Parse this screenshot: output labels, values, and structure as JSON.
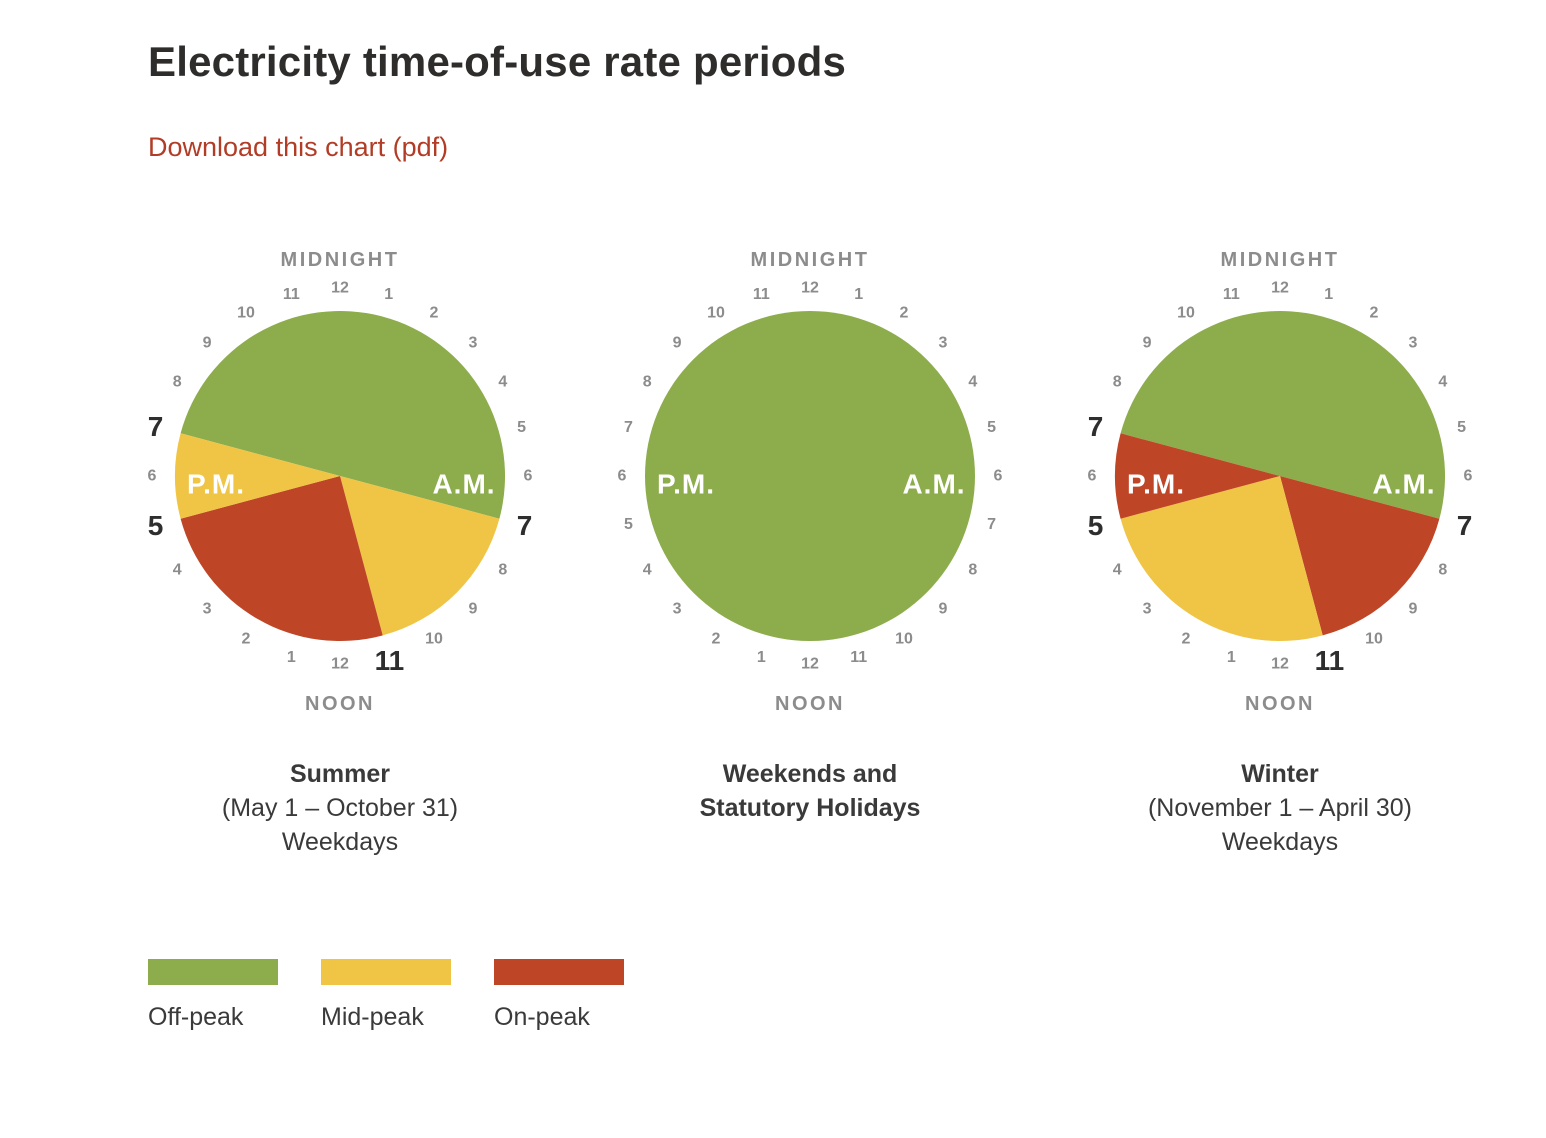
{
  "page": {
    "title": "Electricity time-of-use rate periods",
    "download_link": "Download this chart (pdf)"
  },
  "colors": {
    "off_peak": "#8dad4d",
    "mid_peak": "#f0c545",
    "on_peak": "#bf4527",
    "link": "#b23c26",
    "number": "#8c8c8c",
    "number_bold": "#2e2e2e",
    "text": "#3a3a3a"
  },
  "clock_common": {
    "midnight_label": "MIDNIGHT",
    "noon_label": "NOON",
    "am_label": "A.M.",
    "pm_label": "P.M."
  },
  "chart_data": [
    {
      "type": "pie",
      "name": "summer",
      "hours_per_revolution": 24,
      "midnight_at_top": true,
      "segments": [
        {
          "period": "off-peak",
          "from_hour": 19,
          "to_hour": 31,
          "description": "7 P.M. to 7 A.M."
        },
        {
          "period": "mid-peak",
          "from_hour": 7,
          "to_hour": 11,
          "description": "7 A.M. to 11 A.M."
        },
        {
          "period": "on-peak",
          "from_hour": 11,
          "to_hour": 17,
          "description": "11 A.M. to 5 P.M."
        },
        {
          "period": "mid-peak",
          "from_hour": 17,
          "to_hour": 19,
          "description": "5 P.M. to 7 P.M."
        }
      ],
      "bold_hours": [
        7,
        11,
        17,
        19
      ],
      "caption": {
        "bold_lines": [
          "Summer"
        ],
        "lines": [
          "(May 1 – October 31)",
          "Weekdays"
        ]
      }
    },
    {
      "type": "pie",
      "name": "weekends",
      "hours_per_revolution": 24,
      "midnight_at_top": true,
      "segments": [
        {
          "period": "off-peak",
          "from_hour": 0,
          "to_hour": 24,
          "description": "All day"
        }
      ],
      "bold_hours": [],
      "caption": {
        "bold_lines": [
          "Weekends and",
          "Statutory Holidays"
        ],
        "lines": []
      }
    },
    {
      "type": "pie",
      "name": "winter",
      "hours_per_revolution": 24,
      "midnight_at_top": true,
      "segments": [
        {
          "period": "off-peak",
          "from_hour": 19,
          "to_hour": 31,
          "description": "7 P.M. to 7 A.M."
        },
        {
          "period": "on-peak",
          "from_hour": 7,
          "to_hour": 11,
          "description": "7 A.M. to 11 A.M."
        },
        {
          "period": "mid-peak",
          "from_hour": 11,
          "to_hour": 17,
          "description": "11 A.M. to 5 P.M."
        },
        {
          "period": "on-peak",
          "from_hour": 17,
          "to_hour": 19,
          "description": "5 P.M. to 7 P.M."
        }
      ],
      "bold_hours": [
        7,
        11,
        17,
        19
      ],
      "caption": {
        "bold_lines": [
          "Winter"
        ],
        "lines": [
          "(November 1 – April 30)",
          "Weekdays"
        ]
      }
    }
  ],
  "legend": [
    {
      "label": "Off-peak",
      "period": "off-peak"
    },
    {
      "label": "Mid-peak",
      "period": "mid-peak"
    },
    {
      "label": "On-peak",
      "period": "on-peak"
    }
  ]
}
